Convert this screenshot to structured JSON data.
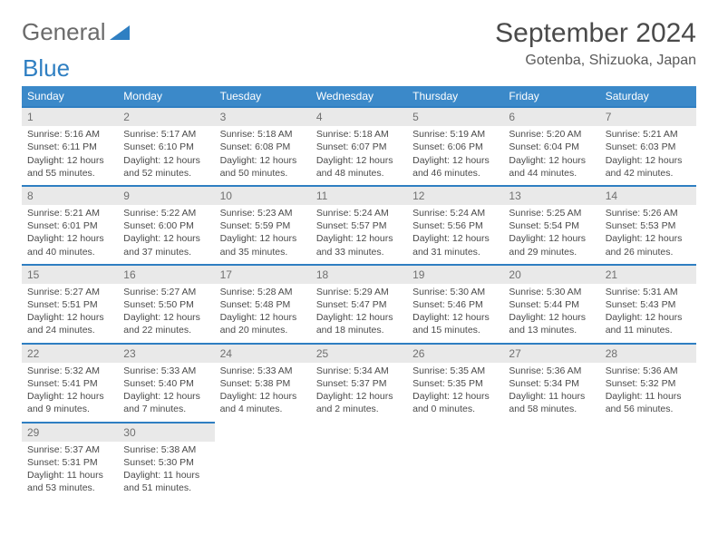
{
  "logo": {
    "text1": "General",
    "text2": "Blue"
  },
  "title": "September 2024",
  "location": "Gotenba, Shizuoka, Japan",
  "weekday_header_bg": "#3b89c9",
  "weekday_header_fg": "#ffffff",
  "row_top_border": "#2f7fc2",
  "daynum_bg": "#e9e9e9",
  "weekdays": [
    "Sunday",
    "Monday",
    "Tuesday",
    "Wednesday",
    "Thursday",
    "Friday",
    "Saturday"
  ],
  "weeks": [
    [
      {
        "n": "1",
        "sunrise": "5:16 AM",
        "sunset": "6:11 PM",
        "day_h": 12,
        "day_m": 55
      },
      {
        "n": "2",
        "sunrise": "5:17 AM",
        "sunset": "6:10 PM",
        "day_h": 12,
        "day_m": 52
      },
      {
        "n": "3",
        "sunrise": "5:18 AM",
        "sunset": "6:08 PM",
        "day_h": 12,
        "day_m": 50
      },
      {
        "n": "4",
        "sunrise": "5:18 AM",
        "sunset": "6:07 PM",
        "day_h": 12,
        "day_m": 48
      },
      {
        "n": "5",
        "sunrise": "5:19 AM",
        "sunset": "6:06 PM",
        "day_h": 12,
        "day_m": 46
      },
      {
        "n": "6",
        "sunrise": "5:20 AM",
        "sunset": "6:04 PM",
        "day_h": 12,
        "day_m": 44
      },
      {
        "n": "7",
        "sunrise": "5:21 AM",
        "sunset": "6:03 PM",
        "day_h": 12,
        "day_m": 42
      }
    ],
    [
      {
        "n": "8",
        "sunrise": "5:21 AM",
        "sunset": "6:01 PM",
        "day_h": 12,
        "day_m": 40
      },
      {
        "n": "9",
        "sunrise": "5:22 AM",
        "sunset": "6:00 PM",
        "day_h": 12,
        "day_m": 37
      },
      {
        "n": "10",
        "sunrise": "5:23 AM",
        "sunset": "5:59 PM",
        "day_h": 12,
        "day_m": 35
      },
      {
        "n": "11",
        "sunrise": "5:24 AM",
        "sunset": "5:57 PM",
        "day_h": 12,
        "day_m": 33
      },
      {
        "n": "12",
        "sunrise": "5:24 AM",
        "sunset": "5:56 PM",
        "day_h": 12,
        "day_m": 31
      },
      {
        "n": "13",
        "sunrise": "5:25 AM",
        "sunset": "5:54 PM",
        "day_h": 12,
        "day_m": 29
      },
      {
        "n": "14",
        "sunrise": "5:26 AM",
        "sunset": "5:53 PM",
        "day_h": 12,
        "day_m": 26
      }
    ],
    [
      {
        "n": "15",
        "sunrise": "5:27 AM",
        "sunset": "5:51 PM",
        "day_h": 12,
        "day_m": 24
      },
      {
        "n": "16",
        "sunrise": "5:27 AM",
        "sunset": "5:50 PM",
        "day_h": 12,
        "day_m": 22
      },
      {
        "n": "17",
        "sunrise": "5:28 AM",
        "sunset": "5:48 PM",
        "day_h": 12,
        "day_m": 20
      },
      {
        "n": "18",
        "sunrise": "5:29 AM",
        "sunset": "5:47 PM",
        "day_h": 12,
        "day_m": 18
      },
      {
        "n": "19",
        "sunrise": "5:30 AM",
        "sunset": "5:46 PM",
        "day_h": 12,
        "day_m": 15
      },
      {
        "n": "20",
        "sunrise": "5:30 AM",
        "sunset": "5:44 PM",
        "day_h": 12,
        "day_m": 13
      },
      {
        "n": "21",
        "sunrise": "5:31 AM",
        "sunset": "5:43 PM",
        "day_h": 12,
        "day_m": 11
      }
    ],
    [
      {
        "n": "22",
        "sunrise": "5:32 AM",
        "sunset": "5:41 PM",
        "day_h": 12,
        "day_m": 9
      },
      {
        "n": "23",
        "sunrise": "5:33 AM",
        "sunset": "5:40 PM",
        "day_h": 12,
        "day_m": 7
      },
      {
        "n": "24",
        "sunrise": "5:33 AM",
        "sunset": "5:38 PM",
        "day_h": 12,
        "day_m": 4
      },
      {
        "n": "25",
        "sunrise": "5:34 AM",
        "sunset": "5:37 PM",
        "day_h": 12,
        "day_m": 2
      },
      {
        "n": "26",
        "sunrise": "5:35 AM",
        "sunset": "5:35 PM",
        "day_h": 12,
        "day_m": 0
      },
      {
        "n": "27",
        "sunrise": "5:36 AM",
        "sunset": "5:34 PM",
        "day_h": 11,
        "day_m": 58
      },
      {
        "n": "28",
        "sunrise": "5:36 AM",
        "sunset": "5:32 PM",
        "day_h": 11,
        "day_m": 56
      }
    ],
    [
      {
        "n": "29",
        "sunrise": "5:37 AM",
        "sunset": "5:31 PM",
        "day_h": 11,
        "day_m": 53
      },
      {
        "n": "30",
        "sunrise": "5:38 AM",
        "sunset": "5:30 PM",
        "day_h": 11,
        "day_m": 51
      },
      null,
      null,
      null,
      null,
      null
    ]
  ],
  "labels": {
    "sunrise": "Sunrise:",
    "sunset": "Sunset:",
    "daylight": "Daylight:",
    "hours": "hours",
    "and": "and",
    "minutes": "minutes."
  }
}
